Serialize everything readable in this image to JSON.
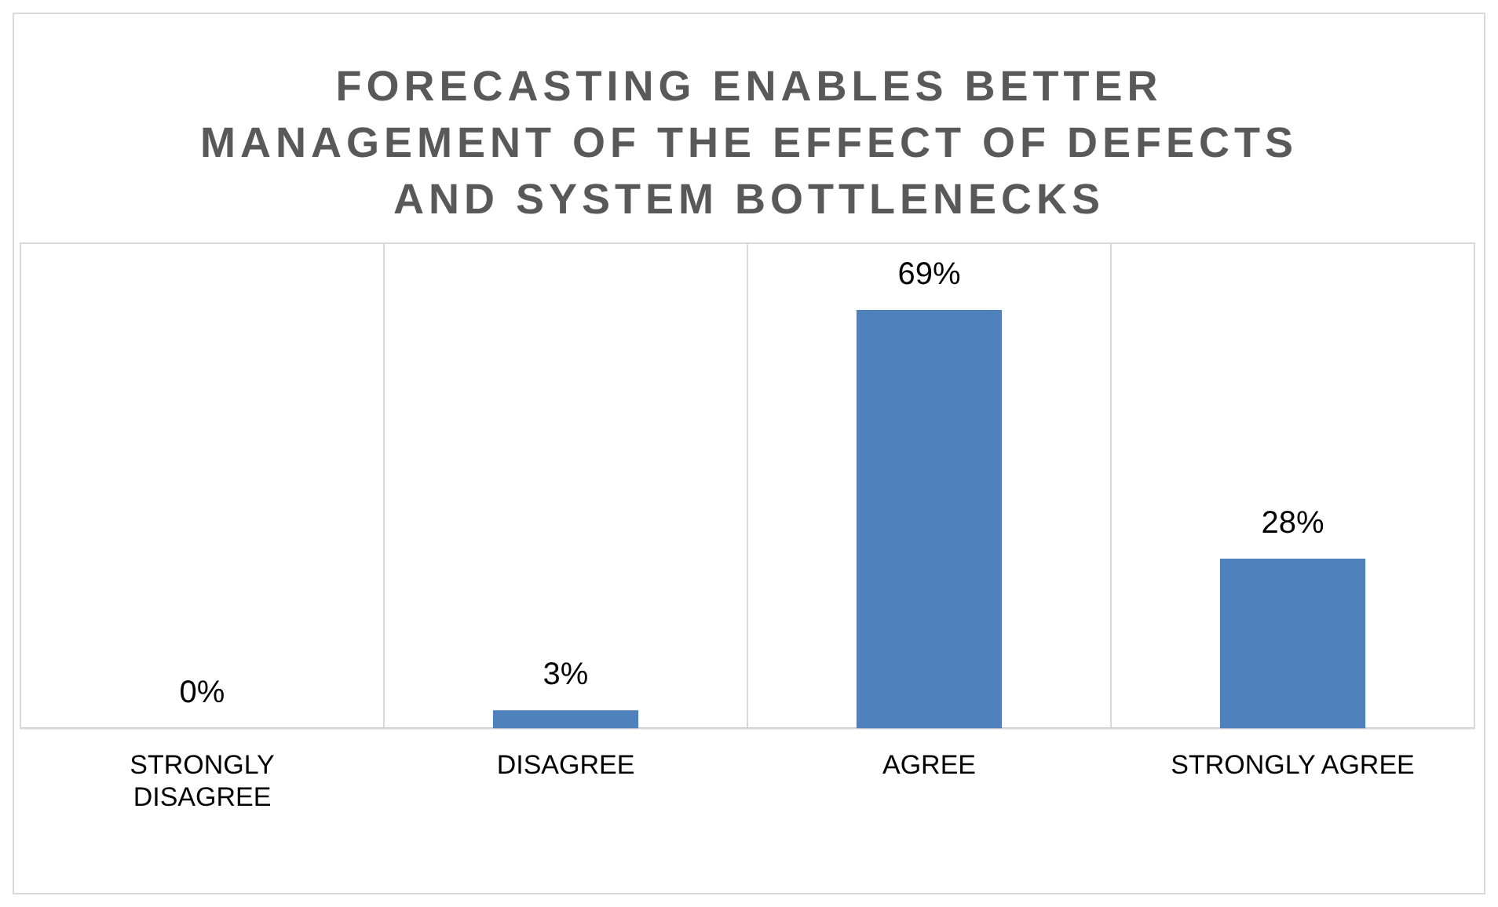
{
  "chart_data": {
    "type": "bar",
    "title": "FORECASTING ENABLES BETTER MANAGEMENT OF THE EFFECT OF DEFECTS AND SYSTEM BOTTLENECKS",
    "categories": [
      "STRONGLY DISAGREE",
      "DISAGREE",
      "AGREE",
      "STRONGLY AGREE"
    ],
    "values": [
      0,
      3,
      69,
      28
    ],
    "value_labels": [
      "0%",
      "3%",
      "69%",
      "28%"
    ],
    "color": "#4f81bd",
    "grid": "x"
  }
}
